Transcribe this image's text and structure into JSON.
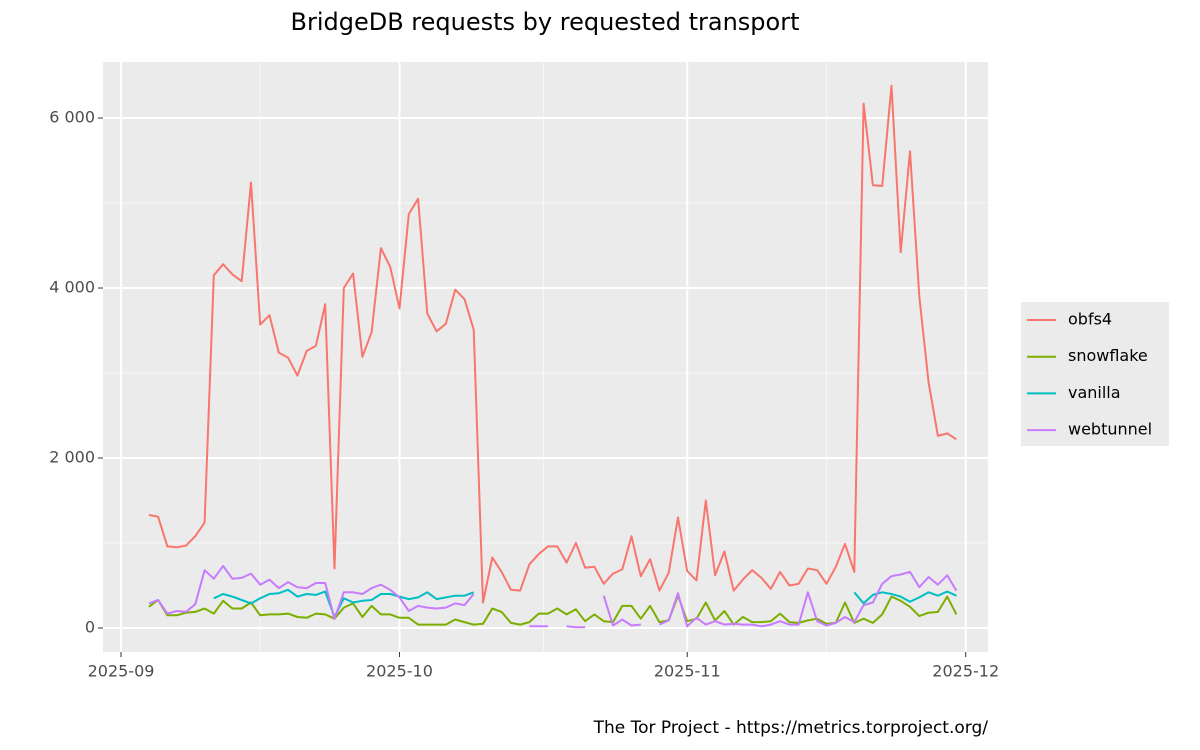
{
  "chart_data": {
    "type": "line",
    "title": "BridgeDB requests by requested transport",
    "caption": "The Tor Project - https://metrics.torproject.org/",
    "x": [
      3,
      4,
      5,
      6,
      7,
      8,
      9,
      10,
      11,
      12,
      13,
      14,
      15,
      16,
      17,
      18,
      19,
      20,
      21,
      22,
      23,
      24,
      25,
      26,
      27,
      28,
      29,
      30,
      31,
      32,
      33,
      34,
      35,
      36,
      37,
      38,
      39,
      40,
      41,
      42,
      43,
      44,
      45,
      46,
      47,
      48,
      49,
      50,
      51,
      52,
      53,
      54,
      55,
      56,
      57,
      58,
      59,
      60,
      61,
      62,
      63,
      64,
      65,
      66,
      67,
      68,
      69,
      70,
      71,
      72,
      73,
      74,
      75,
      76,
      77,
      78,
      79,
      80,
      81,
      82,
      83,
      84,
      85,
      86,
      87,
      88,
      89,
      90
    ],
    "xlim": [
      -1.94,
      93.4
    ],
    "xticks": [
      {
        "value": 0,
        "label": "2025-09"
      },
      {
        "value": 30,
        "label": "2025-10"
      },
      {
        "value": 61,
        "label": "2025-11"
      },
      {
        "value": 91,
        "label": "2025-12"
      }
    ],
    "ylim": [
      -282,
      6659
    ],
    "yticks": [
      0,
      {
        "value": 2000,
        "label": "2 000"
      },
      {
        "value": 4000,
        "label": "4 000"
      },
      {
        "value": 6000,
        "label": "6 000"
      }
    ],
    "grid": true,
    "legend": "right",
    "series": [
      {
        "name": "obfs4",
        "color": "#f8766d",
        "values": [
          1330,
          1310,
          960,
          950,
          970,
          1080,
          1240,
          4150,
          4280,
          4160,
          4080,
          5240,
          3570,
          3680,
          3240,
          3180,
          2970,
          3260,
          3320,
          3810,
          700,
          4000,
          4170,
          3190,
          3480,
          4470,
          4250,
          3760,
          4870,
          5050,
          3700,
          3490,
          3580,
          3980,
          3870,
          3510,
          300,
          830,
          660,
          450,
          440,
          750,
          870,
          960,
          960,
          770,
          1000,
          710,
          720,
          520,
          640,
          690,
          1080,
          610,
          810,
          440,
          650,
          1300,
          670,
          560,
          1500,
          620,
          900,
          440,
          570,
          680,
          590,
          460,
          660,
          500,
          520,
          700,
          680,
          520,
          720,
          990,
          660,
          6170,
          5210,
          5200,
          6380,
          4420,
          5610,
          3900,
          2890,
          2260,
          2290,
          2220
        ]
      },
      {
        "name": "snowflake",
        "color": "#7cae00",
        "values": [
          250,
          330,
          150,
          150,
          180,
          190,
          230,
          170,
          320,
          230,
          230,
          300,
          150,
          160,
          160,
          170,
          130,
          120,
          170,
          160,
          110,
          240,
          290,
          130,
          260,
          160,
          160,
          120,
          120,
          40,
          40,
          40,
          40,
          100,
          70,
          40,
          50,
          230,
          190,
          60,
          40,
          70,
          170,
          170,
          230,
          160,
          220,
          80,
          160,
          80,
          70,
          260,
          260,
          110,
          260,
          70,
          90,
          380,
          80,
          110,
          300,
          90,
          200,
          40,
          130,
          70,
          70,
          80,
          170,
          70,
          60,
          90,
          110,
          50,
          60,
          300,
          60,
          110,
          60,
          160,
          370,
          320,
          250,
          140,
          180,
          190,
          370,
          160
        ]
      },
      {
        "name": "vanilla",
        "color": "#00bfc4",
        "values": [
          null,
          null,
          null,
          null,
          null,
          null,
          null,
          350,
          400,
          370,
          330,
          290,
          350,
          400,
          410,
          450,
          370,
          400,
          390,
          430,
          130,
          350,
          300,
          320,
          330,
          400,
          400,
          370,
          340,
          360,
          420,
          340,
          360,
          380,
          380,
          420,
          null,
          null,
          null,
          null,
          null,
          null,
          null,
          null,
          null,
          null,
          null,
          null,
          null,
          null,
          null,
          null,
          null,
          null,
          null,
          null,
          null,
          null,
          null,
          null,
          null,
          null,
          null,
          null,
          null,
          null,
          null,
          null,
          null,
          null,
          null,
          null,
          null,
          null,
          null,
          null,
          420,
          290,
          390,
          420,
          400,
          370,
          310,
          360,
          420,
          380,
          430,
          380
        ]
      },
      {
        "name": "webtunnel",
        "color": "#c77cff",
        "values": [
          290,
          330,
          170,
          200,
          190,
          280,
          680,
          580,
          730,
          580,
          590,
          640,
          510,
          570,
          470,
          540,
          480,
          470,
          530,
          530,
          110,
          420,
          420,
          400,
          470,
          510,
          450,
          360,
          200,
          260,
          240,
          230,
          240,
          290,
          270,
          400,
          null,
          null,
          null,
          null,
          null,
          20,
          20,
          20,
          null,
          20,
          10,
          10,
          null,
          380,
          30,
          100,
          30,
          40,
          null,
          40,
          90,
          410,
          20,
          120,
          40,
          80,
          40,
          50,
          40,
          40,
          20,
          40,
          80,
          40,
          40,
          420,
          80,
          30,
          60,
          130,
          70,
          270,
          300,
          520,
          610,
          630,
          660,
          480,
          600,
          510,
          620,
          440
        ]
      }
    ]
  }
}
